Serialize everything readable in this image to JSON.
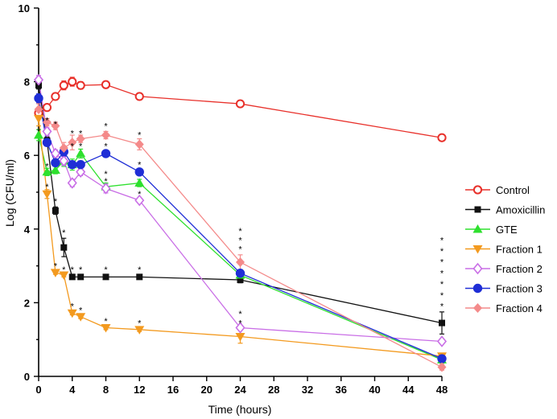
{
  "chart_data": {
    "type": "line",
    "title": "",
    "xlabel": "Time (hours)",
    "ylabel": "Log (CFU/ml)",
    "xlim": [
      0,
      48
    ],
    "ylim": [
      0,
      10
    ],
    "xticks": [
      0,
      4,
      8,
      12,
      16,
      20,
      24,
      28,
      32,
      36,
      40,
      44,
      48
    ],
    "yticks": [
      0,
      2,
      4,
      6,
      8,
      10
    ],
    "legend_position": "right",
    "series": [
      {
        "name": "Control",
        "color": "#e8302a",
        "marker": "circle-open",
        "x": [
          0,
          1,
          2,
          3,
          4,
          5,
          8,
          12,
          24,
          48
        ],
        "y": [
          7.15,
          7.3,
          7.6,
          7.9,
          8.0,
          7.9,
          7.92,
          7.6,
          7.4,
          6.48
        ],
        "err": [
          0.1,
          0.08,
          0.08,
          0.12,
          0.12,
          0.1,
          0.05,
          0.05,
          0.05,
          0.05
        ]
      },
      {
        "name": "Amoxicillin",
        "color": "#111111",
        "marker": "square",
        "x": [
          0,
          1,
          2,
          3,
          4,
          5,
          8,
          12,
          24,
          48
        ],
        "y": [
          7.9,
          6.4,
          4.5,
          3.5,
          2.7,
          2.7,
          2.7,
          2.7,
          2.62,
          1.45
        ],
        "err": [
          0.1,
          0.1,
          0.1,
          0.25,
          0.05,
          0.05,
          0.05,
          0.05,
          0.08,
          0.3
        ]
      },
      {
        "name": "GTE",
        "color": "#2ee02e",
        "marker": "triangle-up",
        "x": [
          0,
          1,
          2,
          3,
          4,
          5,
          8,
          12,
          24,
          48
        ],
        "y": [
          6.55,
          5.55,
          5.6,
          5.85,
          5.75,
          6.05,
          5.15,
          5.25,
          2.75,
          0.45
        ],
        "err": [
          0.15,
          0.1,
          0.1,
          0.15,
          0.15,
          0.12,
          0.1,
          0.1,
          0.1,
          0.08
        ]
      },
      {
        "name": "Fraction 1",
        "color": "#f39a1f",
        "marker": "triangle-down",
        "x": [
          0,
          1,
          2,
          3,
          4,
          5,
          8,
          12,
          24,
          48
        ],
        "y": [
          7.0,
          4.95,
          2.82,
          2.75,
          1.72,
          1.62,
          1.32,
          1.27,
          1.08,
          0.55
        ],
        "err": [
          0.2,
          0.12,
          0.05,
          0.05,
          0.05,
          0.05,
          0.05,
          0.05,
          0.18,
          0.08
        ]
      },
      {
        "name": "Fraction 2",
        "color": "#c96ee6",
        "marker": "diamond-open",
        "x": [
          0,
          1,
          2,
          3,
          4,
          5,
          8,
          12,
          24,
          48
        ],
        "y": [
          8.05,
          6.65,
          6.05,
          5.85,
          5.25,
          5.55,
          5.1,
          4.78,
          1.32,
          0.95
        ],
        "err": [
          0.12,
          0.1,
          0.1,
          0.12,
          0.1,
          0.1,
          0.12,
          0.05,
          0.06,
          0.05
        ]
      },
      {
        "name": "Fraction 3",
        "color": "#1f2ed6",
        "marker": "circle",
        "x": [
          0,
          1,
          2,
          3,
          4,
          5,
          8,
          12,
          24,
          48
        ],
        "y": [
          7.55,
          6.35,
          5.8,
          6.1,
          5.75,
          5.75,
          6.05,
          5.55,
          2.8,
          0.48
        ],
        "err": [
          0.12,
          0.1,
          0.1,
          0.12,
          0.1,
          0.1,
          0.05,
          0.05,
          0.1,
          0.08
        ]
      },
      {
        "name": "Fraction 4",
        "color": "#f48a8a",
        "marker": "diamond",
        "x": [
          0,
          1,
          2,
          3,
          4,
          5,
          8,
          12,
          24,
          48
        ],
        "y": [
          7.25,
          6.9,
          6.8,
          6.2,
          6.35,
          6.45,
          6.55,
          6.3,
          3.1,
          0.25
        ],
        "err": [
          0.15,
          0.1,
          0.1,
          0.15,
          0.2,
          0.1,
          0.1,
          0.15,
          0.2,
          0.08
        ]
      }
    ],
    "annotations": [
      {
        "x": 0,
        "y": 6.7,
        "text": "*"
      },
      {
        "x": 1,
        "y": 7.0,
        "text": "*"
      },
      {
        "x": 1,
        "y": 5.2,
        "text": "*"
      },
      {
        "x": 1,
        "y": 5.75,
        "text": "*"
      },
      {
        "x": 2,
        "y": 6.9,
        "text": "*"
      },
      {
        "x": 2,
        "y": 4.8,
        "text": "*"
      },
      {
        "x": 2,
        "y": 3.05,
        "text": "*"
      },
      {
        "x": 3,
        "y": 3.95,
        "text": "*"
      },
      {
        "x": 3,
        "y": 2.95,
        "text": "*"
      },
      {
        "x": 4,
        "y": 6.65,
        "text": "*"
      },
      {
        "x": 4,
        "y": 6.3,
        "text": "*"
      },
      {
        "x": 4,
        "y": 2.95,
        "text": "*"
      },
      {
        "x": 4,
        "y": 1.95,
        "text": "*"
      },
      {
        "x": 5,
        "y": 6.65,
        "text": "*"
      },
      {
        "x": 5,
        "y": 6.3,
        "text": "*"
      },
      {
        "x": 5,
        "y": 2.95,
        "text": "*"
      },
      {
        "x": 5,
        "y": 1.85,
        "text": "*"
      },
      {
        "x": 8,
        "y": 6.85,
        "text": "*"
      },
      {
        "x": 8,
        "y": 6.3,
        "text": "*"
      },
      {
        "x": 8,
        "y": 5.55,
        "text": "*"
      },
      {
        "x": 8,
        "y": 5.35,
        "text": "*"
      },
      {
        "x": 8,
        "y": 2.95,
        "text": "*"
      },
      {
        "x": 8,
        "y": 1.55,
        "text": "*"
      },
      {
        "x": 12,
        "y": 6.6,
        "text": "*"
      },
      {
        "x": 12,
        "y": 5.8,
        "text": "*"
      },
      {
        "x": 12,
        "y": 5.0,
        "text": "*"
      },
      {
        "x": 12,
        "y": 2.95,
        "text": "*"
      },
      {
        "x": 12,
        "y": 1.5,
        "text": "*"
      },
      {
        "x": 24,
        "y": 3.5,
        "text": "*"
      },
      {
        "x": 24,
        "y": 3.75,
        "text": "*"
      },
      {
        "x": 24,
        "y": 4.0,
        "text": "*"
      },
      {
        "x": 24,
        "y": 1.5,
        "text": "*"
      },
      {
        "x": 24,
        "y": 1.75,
        "text": "*"
      },
      {
        "x": 48,
        "y": 1.95,
        "text": "*"
      },
      {
        "x": 48,
        "y": 2.25,
        "text": "*"
      },
      {
        "x": 48,
        "y": 2.55,
        "text": "*"
      },
      {
        "x": 48,
        "y": 2.85,
        "text": "*"
      },
      {
        "x": 48,
        "y": 3.15,
        "text": "*"
      },
      {
        "x": 48,
        "y": 3.45,
        "text": "*"
      },
      {
        "x": 48,
        "y": 3.75,
        "text": "*"
      }
    ]
  }
}
